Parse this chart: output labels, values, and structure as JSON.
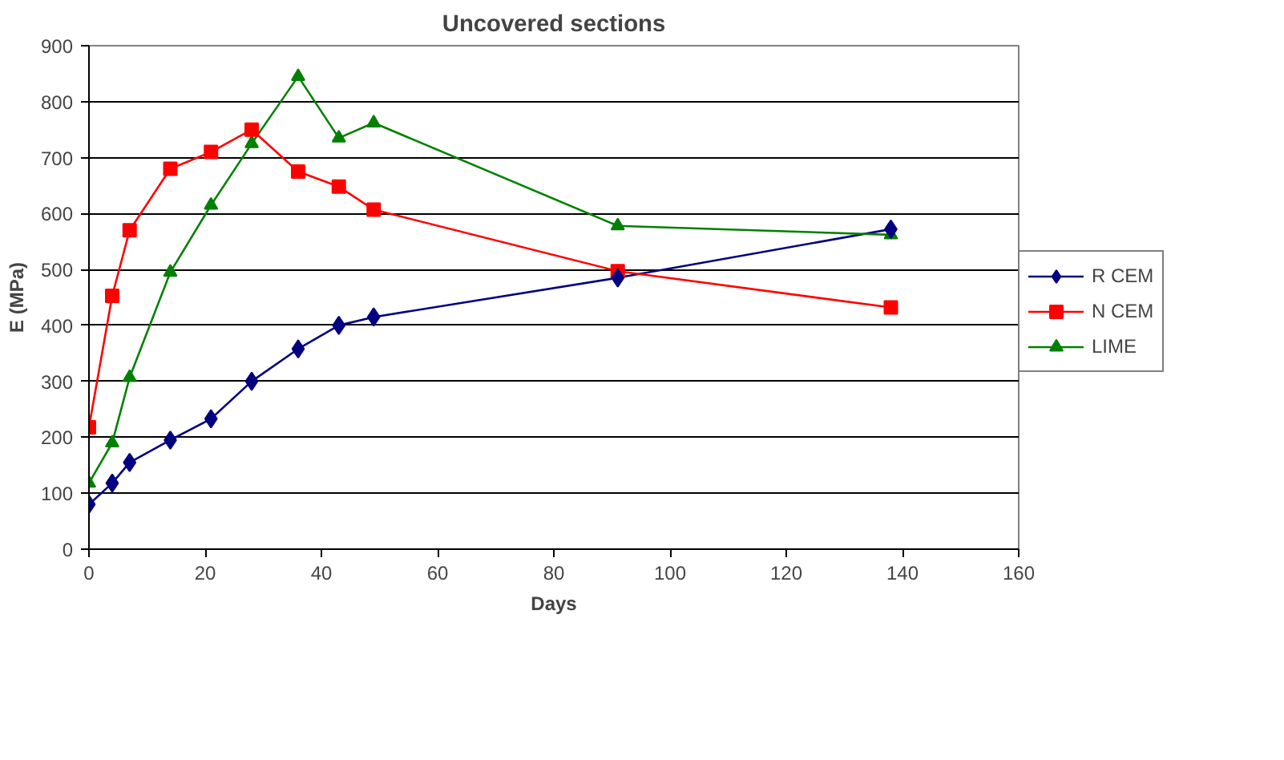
{
  "chart_data": {
    "type": "line",
    "title": "Uncovered sections",
    "xlabel": "Days",
    "ylabel": "E (MPa)",
    "x": [
      0,
      4,
      7,
      14,
      21,
      28,
      36,
      43,
      49,
      91,
      138
    ],
    "series": [
      {
        "name": "R CEM",
        "color": "#000080",
        "marker": "diamond",
        "values": [
          80,
          118,
          155,
          195,
          233,
          300,
          358,
          400,
          415,
          485,
          572
        ]
      },
      {
        "name": "N CEM",
        "color": "#ff0000",
        "marker": "square",
        "values": [
          218,
          453,
          570,
          680,
          710,
          750,
          675,
          648,
          607,
          497,
          432
        ]
      },
      {
        "name": "LIME",
        "color": "#008000",
        "marker": "triangle",
        "values": [
          118,
          190,
          307,
          495,
          615,
          725,
          845,
          735,
          762,
          578,
          562
        ]
      }
    ],
    "xlim": [
      0,
      160
    ],
    "xticks": [
      0,
      20,
      40,
      60,
      80,
      100,
      120,
      140,
      160
    ],
    "ylim": [
      0,
      900
    ],
    "yticks": [
      0,
      100,
      200,
      300,
      400,
      500,
      600,
      700,
      800,
      900
    ],
    "grid": "y",
    "legend": "right",
    "line_style": "solid"
  }
}
